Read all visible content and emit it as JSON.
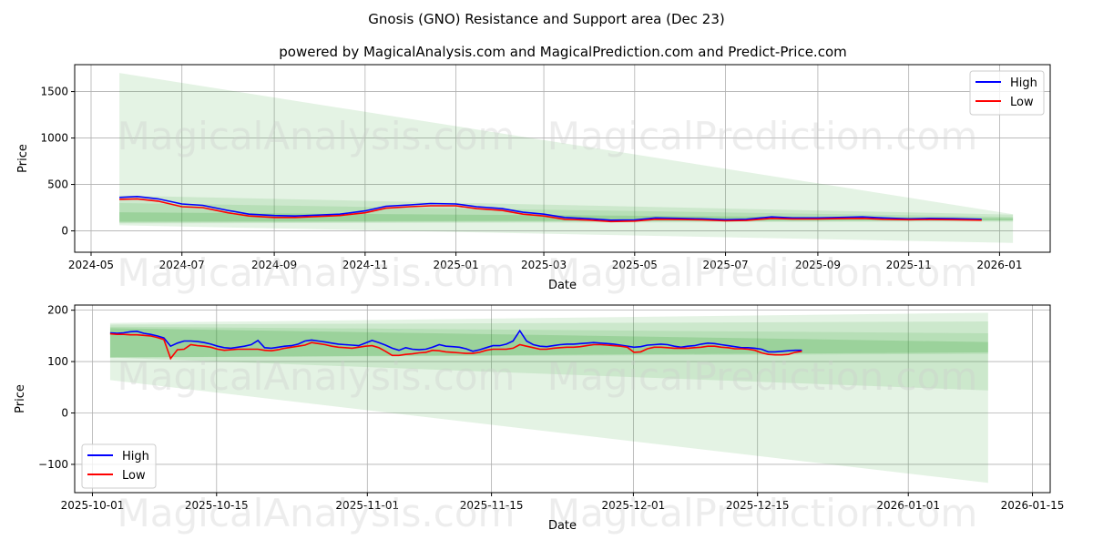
{
  "title": "Gnosis (GNO) Resistance and Support area (Dec 23)",
  "subtitle": "powered by MagicalAnalysis.com and MagicalPrediction.com and Predict-Price.com",
  "watermarks": [
    "MagicalAnalysis.com",
    "MagicalPrediction.com"
  ],
  "colors": {
    "high": "#0000ff",
    "low": "#ff0000",
    "band": "#2ca02c"
  },
  "chart_data": [
    {
      "type": "line",
      "xlabel": "Date",
      "ylabel": "Price",
      "legend": {
        "position": "top-right",
        "entries": [
          "High",
          "Low"
        ]
      },
      "grid": true,
      "xlim": [
        "2024-04-20",
        "2026-02-04"
      ],
      "ylim": [
        -230,
        1790
      ],
      "x_ticks": [
        "2024-05",
        "2024-07",
        "2024-09",
        "2024-11",
        "2025-01",
        "2025-03",
        "2025-05",
        "2025-07",
        "2025-09",
        "2025-11",
        "2026-01"
      ],
      "x_tick_dates": [
        "2024-05-01",
        "2024-07-01",
        "2024-09-01",
        "2024-11-01",
        "2025-01-01",
        "2025-03-01",
        "2025-05-01",
        "2025-07-01",
        "2025-09-01",
        "2025-11-01",
        "2026-01-01"
      ],
      "y_ticks": [
        0,
        500,
        1000,
        1500
      ],
      "x": [
        "2024-05-20",
        "2024-06-01",
        "2024-06-15",
        "2024-07-01",
        "2024-07-15",
        "2024-08-01",
        "2024-08-15",
        "2024-09-01",
        "2024-09-15",
        "2024-10-01",
        "2024-10-15",
        "2024-11-01",
        "2024-11-15",
        "2024-12-01",
        "2024-12-15",
        "2025-01-01",
        "2025-01-15",
        "2025-02-01",
        "2025-02-15",
        "2025-03-01",
        "2025-03-15",
        "2025-04-01",
        "2025-04-15",
        "2025-05-01",
        "2025-05-15",
        "2025-06-01",
        "2025-06-15",
        "2025-07-01",
        "2025-07-15",
        "2025-08-01",
        "2025-08-15",
        "2025-09-01",
        "2025-09-15",
        "2025-10-01",
        "2025-10-15",
        "2025-11-01",
        "2025-11-15",
        "2025-12-01",
        "2025-12-20"
      ],
      "series": [
        {
          "name": "High",
          "values": [
            360,
            370,
            345,
            290,
            275,
            220,
            180,
            165,
            160,
            170,
            180,
            215,
            265,
            280,
            295,
            290,
            260,
            240,
            200,
            180,
            145,
            130,
            115,
            118,
            140,
            135,
            130,
            120,
            125,
            150,
            140,
            140,
            145,
            150,
            140,
            130,
            135,
            132,
            125
          ]
        },
        {
          "name": "Low",
          "values": [
            340,
            345,
            320,
            260,
            250,
            195,
            160,
            145,
            145,
            155,
            165,
            195,
            245,
            260,
            270,
            270,
            240,
            220,
            180,
            160,
            125,
            115,
            100,
            105,
            125,
            122,
            118,
            108,
            112,
            135,
            128,
            128,
            132,
            135,
            125,
            120,
            122,
            120,
            115
          ]
        }
      ],
      "bands": [
        {
          "start_date": "2024-05-20",
          "end_date": "2026-01-10",
          "start": [
            60,
            1700
          ],
          "end": [
            -130,
            180
          ]
        },
        {
          "start_date": "2024-05-20",
          "end_date": "2026-01-10",
          "start": [
            80,
            380
          ],
          "end": [
            100,
            175
          ]
        },
        {
          "start_date": "2024-05-20",
          "end_date": "2026-01-10",
          "start": [
            90,
            300
          ],
          "end": [
            110,
            150
          ]
        },
        {
          "start_date": "2024-05-20",
          "end_date": "2026-01-10",
          "start": [
            100,
            200
          ],
          "end": [
            115,
            135
          ]
        }
      ]
    },
    {
      "type": "line",
      "xlabel": "Date",
      "ylabel": "Price",
      "legend": {
        "position": "bottom-left",
        "entries": [
          "High",
          "Low"
        ]
      },
      "grid": true,
      "xlim": [
        "2025-09-29",
        "2026-01-17"
      ],
      "ylim": [
        -155,
        210
      ],
      "x_ticks": [
        "2025-10-01",
        "2025-10-15",
        "2025-11-01",
        "2025-11-15",
        "2025-12-01",
        "2025-12-15",
        "2026-01-01",
        "2026-01-15"
      ],
      "y_ticks": [
        -100,
        0,
        100,
        200
      ],
      "x_start": "2025-10-03",
      "series": [
        {
          "name": "High",
          "values": [
            156,
            155,
            156,
            158,
            159,
            155,
            153,
            150,
            146,
            130,
            136,
            140,
            140,
            139,
            137,
            134,
            130,
            127,
            126,
            128,
            130,
            133,
            141,
            127,
            126,
            128,
            130,
            131,
            134,
            140,
            142,
            140,
            138,
            136,
            134,
            133,
            132,
            131,
            136,
            141,
            137,
            132,
            126,
            122,
            127,
            124,
            123,
            124,
            128,
            133,
            130,
            129,
            128,
            125,
            120,
            123,
            127,
            131,
            131,
            134,
            140,
            160,
            140,
            133,
            130,
            129,
            131,
            133,
            134,
            134,
            135,
            136,
            137,
            136,
            135,
            134,
            132,
            130,
            128,
            129,
            132,
            133,
            134,
            133,
            130,
            128,
            130,
            131,
            134,
            136,
            135,
            133,
            131,
            129,
            127,
            127,
            126,
            124,
            119,
            119,
            120,
            121,
            122,
            122
          ]
        },
        {
          "name": "Low",
          "values": [
            154,
            153,
            153,
            152,
            152,
            151,
            150,
            147,
            143,
            106,
            123,
            124,
            133,
            131,
            130,
            128,
            124,
            122,
            123,
            124,
            124,
            124,
            124,
            122,
            121,
            123,
            126,
            128,
            130,
            132,
            137,
            135,
            133,
            130,
            128,
            127,
            126,
            128,
            130,
            131,
            127,
            120,
            112,
            112,
            114,
            115,
            117,
            118,
            122,
            121,
            119,
            118,
            117,
            116,
            116,
            118,
            122,
            124,
            124,
            124,
            126,
            133,
            130,
            127,
            124,
            124,
            126,
            127,
            128,
            128,
            129,
            131,
            133,
            133,
            132,
            131,
            130,
            128,
            118,
            119,
            125,
            128,
            128,
            127,
            126,
            126,
            126,
            127,
            128,
            130,
            130,
            128,
            127,
            125,
            125,
            124,
            122,
            117,
            114,
            113,
            113,
            114,
            118,
            120
          ]
        }
      ],
      "bands": [
        {
          "start_date": "2025-10-03",
          "end_date": "2026-01-10",
          "start": [
            64,
            175
          ],
          "end": [
            -136,
            195
          ]
        },
        {
          "start_date": "2025-10-03",
          "end_date": "2026-01-10",
          "start": [
            108,
            172
          ],
          "end": [
            44,
            178
          ]
        },
        {
          "start_date": "2025-10-03",
          "end_date": "2026-01-10",
          "start": [
            108,
            168
          ],
          "end": [
            115,
            155
          ]
        },
        {
          "start_date": "2025-10-03",
          "end_date": "2026-01-10",
          "start": [
            108,
            165
          ],
          "end": [
            118,
            138
          ]
        }
      ]
    }
  ]
}
